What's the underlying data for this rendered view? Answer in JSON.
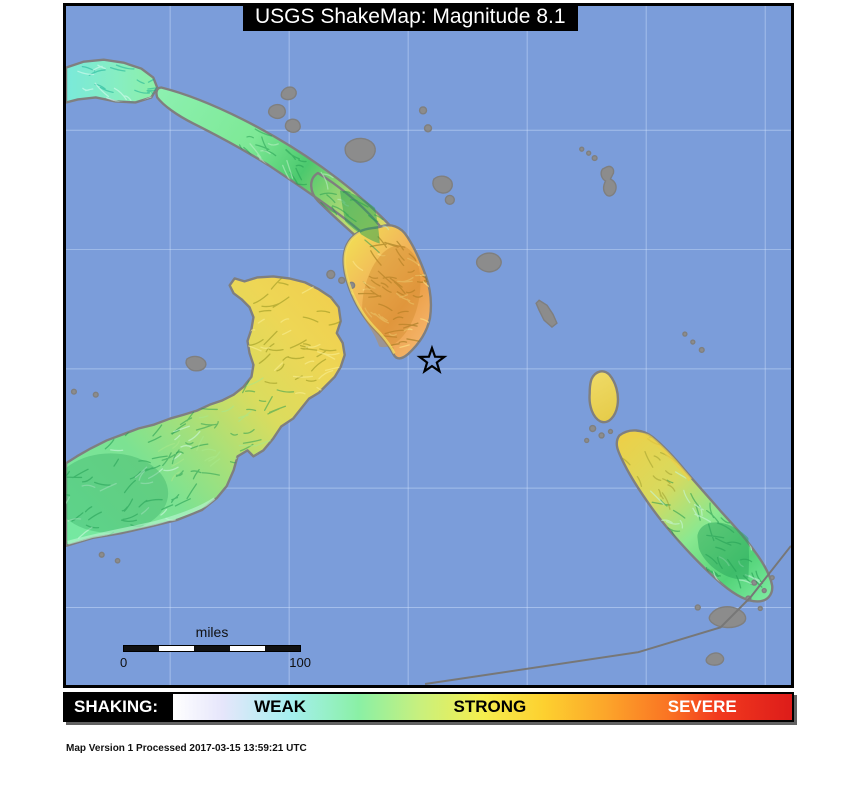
{
  "title": {
    "text": "USGS ShakeMap: Magnitude 8.1"
  },
  "map": {
    "epicenter_marker": "hollow-star",
    "scale_bar": {
      "label": "miles",
      "tick_start": "0",
      "tick_end": "100",
      "segments": 5,
      "segment_colors": [
        "#111111",
        "#ffffff"
      ]
    }
  },
  "legend": {
    "label": "SHAKING:",
    "categories": [
      {
        "text": "WEAK",
        "color": "#000000",
        "position_pct": 17.3
      },
      {
        "text": "STRONG",
        "color": "#000000",
        "position_pct": 51.2
      },
      {
        "text": "SEVERE",
        "color": "#ffffff",
        "position_pct": 85.5
      }
    ],
    "gradient_stops": [
      [
        0.0,
        "#ffffff"
      ],
      [
        0.08,
        "#e6e6fb"
      ],
      [
        0.19,
        "#a5efef"
      ],
      [
        0.3,
        "#8af0a5"
      ],
      [
        0.4,
        "#c9f07d"
      ],
      [
        0.5,
        "#f5ee4e"
      ],
      [
        0.6,
        "#fdd02f"
      ],
      [
        0.7,
        "#fca52a"
      ],
      [
        0.8,
        "#fa7423"
      ],
      [
        0.88,
        "#f23a1e"
      ],
      [
        1.0,
        "#dd1c1a"
      ]
    ]
  },
  "footer": {
    "text": "Map Version 1 Processed 2017-03-15 13:59:21 UTC"
  },
  "colors": {
    "ocean": "#7b9dda",
    "frame": "#000000",
    "coastline": "#7f7f7f",
    "graticule": "#d8e6ff",
    "border_line": "#777777",
    "land_cyan": "#7de8d8",
    "land_green": "#5fd67e",
    "land_yellow": "#f0d44e",
    "land_orange": "#eda04e",
    "star_outline": "#000000"
  }
}
